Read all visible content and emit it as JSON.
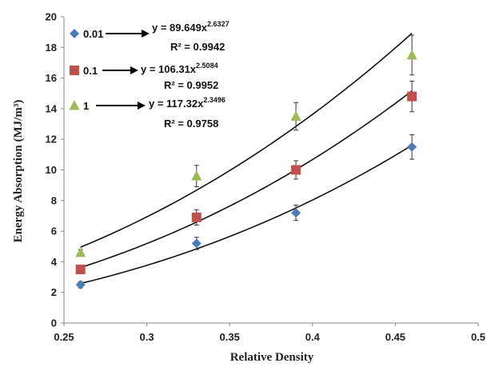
{
  "chart_data": {
    "type": "scatter",
    "xlabel": "Relative Density",
    "ylabel": "Energy Absorption (MJ/m³)",
    "xlim": [
      0.25,
      0.5
    ],
    "ylim": [
      0,
      20
    ],
    "xticks": [
      "0.25",
      "0.3",
      "0.35",
      "0.4",
      "0.45",
      "0.5"
    ],
    "yticks": [
      "0",
      "2",
      "4",
      "6",
      "8",
      "10",
      "12",
      "14",
      "16",
      "18",
      "20"
    ],
    "grid": false,
    "legend_position": "top-left",
    "series": [
      {
        "name": "0.01",
        "marker": "diamond",
        "color": "#4a7ebb",
        "x": [
          0.26,
          0.33,
          0.39,
          0.46
        ],
        "y": [
          2.5,
          5.2,
          7.2,
          11.5
        ],
        "error": [
          0.2,
          0.4,
          0.5,
          0.8
        ],
        "fit": {
          "a": 89.649,
          "b": 2.6327,
          "equation": "y = 89.649x",
          "exponent": "2.6327",
          "r2": "R² = 0.9942"
        }
      },
      {
        "name": "0.1",
        "marker": "square",
        "color": "#c0504d",
        "x": [
          0.26,
          0.33,
          0.39,
          0.46
        ],
        "y": [
          3.5,
          6.9,
          10.0,
          14.8
        ],
        "error": [
          0.2,
          0.5,
          0.6,
          1.0
        ],
        "fit": {
          "a": 106.31,
          "b": 2.5084,
          "equation": "y = 106.31x",
          "exponent": "2.5084",
          "r2": "R² = 0.9952"
        }
      },
      {
        "name": "1",
        "marker": "triangle",
        "color": "#9bbb59",
        "x": [
          0.26,
          0.33,
          0.39,
          0.46
        ],
        "y": [
          4.6,
          9.6,
          13.5,
          17.5
        ],
        "error": [
          0.2,
          0.7,
          0.9,
          1.3
        ],
        "fit": {
          "a": 117.32,
          "b": 2.3496,
          "equation": "y = 117.32x",
          "exponent": "2.3496",
          "r2": "R² = 0.9758"
        }
      }
    ]
  }
}
